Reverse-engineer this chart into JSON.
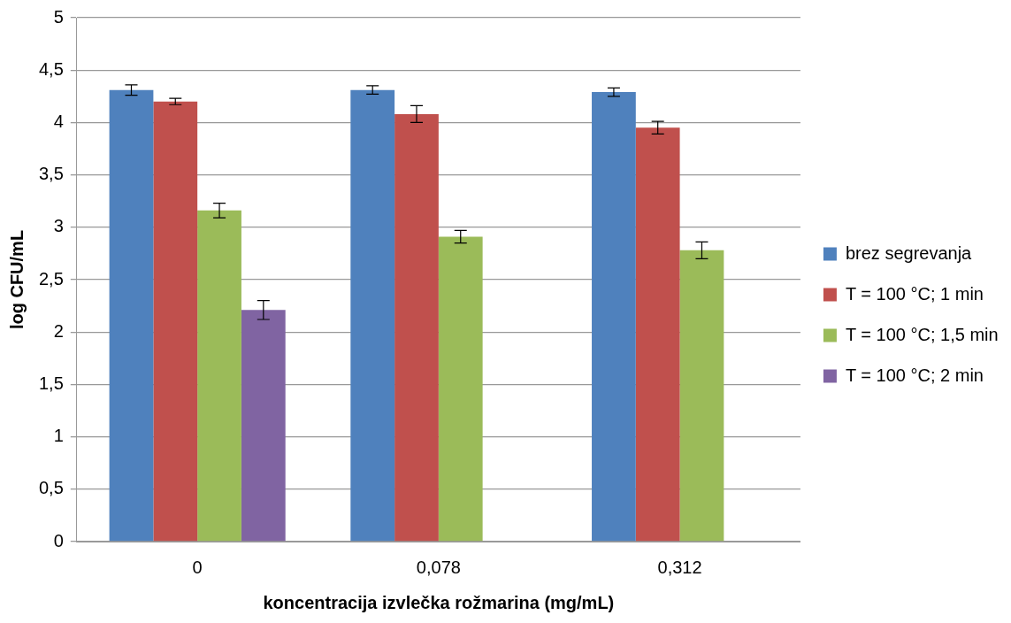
{
  "chart_data": {
    "type": "bar",
    "xlabel": "koncentracija izvlečka rožmarina (mg/mL)",
    "ylabel": "log CFU/mL",
    "categories": [
      "0",
      "0,078",
      "0,312"
    ],
    "series": [
      {
        "name": "brez segrevanja",
        "color": "#4f81bd",
        "values": [
          4.31,
          4.31,
          4.29
        ],
        "errors": [
          0.05,
          0.04,
          0.04
        ]
      },
      {
        "name": "T = 100 °C; 1 min",
        "color": "#c0504d",
        "values": [
          4.2,
          4.08,
          3.95
        ],
        "errors": [
          0.03,
          0.08,
          0.06
        ]
      },
      {
        "name": "T = 100 °C; 1,5 min",
        "color": "#9bbb59",
        "values": [
          3.16,
          2.91,
          2.78
        ],
        "errors": [
          0.07,
          0.06,
          0.08
        ]
      },
      {
        "name": "T = 100 °C; 2 min",
        "color": "#8064a2",
        "values": [
          2.21,
          0,
          null
        ],
        "errors": [
          0.09,
          null,
          null
        ]
      }
    ],
    "ylim": [
      0,
      5
    ],
    "yticks": [
      0,
      {
        "value": 0.5,
        "label": "0,5"
      },
      1,
      {
        "value": 1.5,
        "label": "1,5"
      },
      2,
      {
        "value": 2.5,
        "label": "2,5"
      },
      3,
      {
        "value": 3.5,
        "label": "3,5"
      },
      4,
      {
        "value": 4.5,
        "label": "4,5"
      },
      5
    ],
    "grid": "y",
    "legend": "right"
  }
}
